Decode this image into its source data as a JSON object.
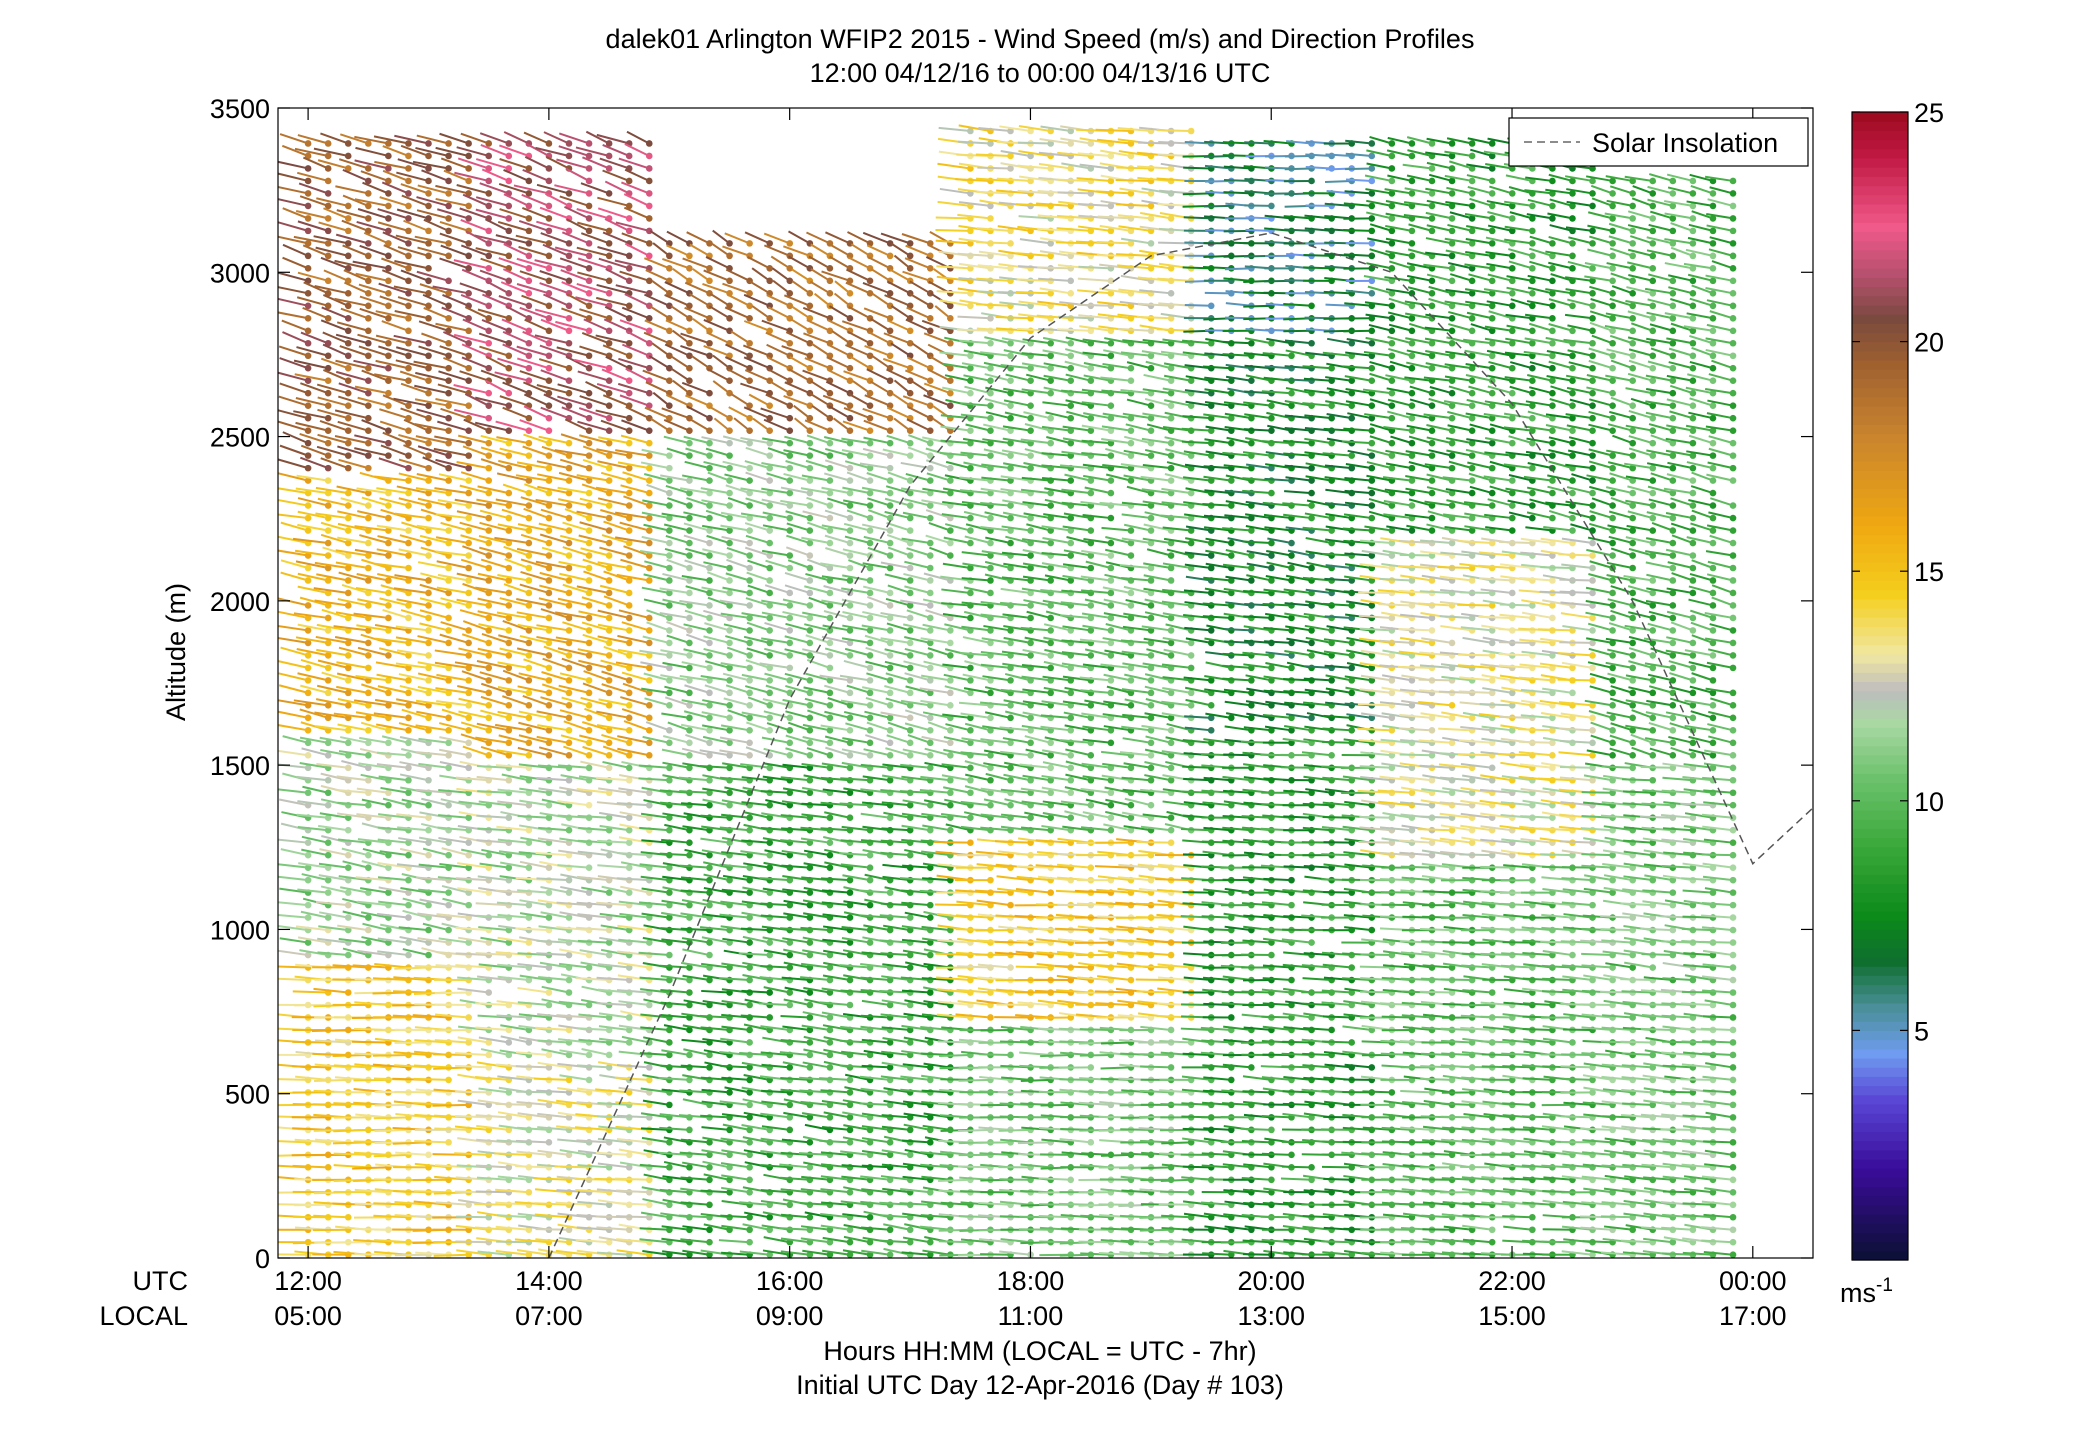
{
  "chart_data": {
    "type": "scatter",
    "subtype": "wind-barb-profile",
    "title": "dalek01 Arlington WFIP2 2015 - Wind Speed (m/s) and Direction Profiles",
    "subtitle": "12:00 04/12/16 to 00:00 04/13/16  UTC",
    "ylabel": "Altitude (m)",
    "xlabel": "Hours HH:MM  (LOCAL = UTC - 7hr)",
    "xlabel2": "Initial UTC Day 12-Apr-2016 (Day # 103)",
    "xlim_hours_utc": [
      11.75,
      24.5
    ],
    "ylim": [
      0,
      3500
    ],
    "yticks": [
      "0",
      "500",
      "1000",
      "1500",
      "2000",
      "2500",
      "3000",
      "3500"
    ],
    "ytick_values": [
      0,
      500,
      1000,
      1500,
      2000,
      2500,
      3000,
      3500
    ],
    "row_label_utc": "UTC",
    "row_label_local": "LOCAL",
    "xticks_utc": [
      "12:00",
      "14:00",
      "16:00",
      "18:00",
      "20:00",
      "22:00",
      "00:00"
    ],
    "xticks_local": [
      "05:00",
      "07:00",
      "09:00",
      "11:00",
      "13:00",
      "15:00",
      "17:00"
    ],
    "xtick_hours": [
      12,
      14,
      16,
      18,
      20,
      22,
      24
    ],
    "legend": {
      "entry": "Solar Insolation",
      "placement": "top-right",
      "style": "dashed gray line"
    },
    "solar_insolation_curve": {
      "hours": [
        14,
        15,
        16,
        17,
        18,
        19,
        20,
        21,
        22,
        23,
        24,
        24.5
      ],
      "altitude": [
        0,
        800,
        1700,
        2350,
        2800,
        3050,
        3120,
        3000,
        2600,
        2000,
        1200,
        1370
      ]
    },
    "colorbar": {
      "min": 0,
      "max": 25,
      "ticks": [
        "5",
        "10",
        "15",
        "20",
        "25"
      ],
      "tick_values": [
        5,
        10,
        15,
        20,
        25
      ],
      "unit_label": "ms",
      "unit_exponent": "-1",
      "color_stops": [
        {
          "v": 0,
          "c": "#0b1033"
        },
        {
          "v": 2,
          "c": "#3a0c9a"
        },
        {
          "v": 3.5,
          "c": "#5a47d6"
        },
        {
          "v": 4.5,
          "c": "#6f9cf0"
        },
        {
          "v": 5.5,
          "c": "#4a8f99"
        },
        {
          "v": 6.5,
          "c": "#0f6f2f"
        },
        {
          "v": 7.5,
          "c": "#0c8a1a"
        },
        {
          "v": 9,
          "c": "#3aa83a"
        },
        {
          "v": 10.5,
          "c": "#6cc26c"
        },
        {
          "v": 11.7,
          "c": "#a9d8a3"
        },
        {
          "v": 12.4,
          "c": "#bdbdbd"
        },
        {
          "v": 13.2,
          "c": "#f1e7a1"
        },
        {
          "v": 14.5,
          "c": "#f4cf1e"
        },
        {
          "v": 16,
          "c": "#f0a811"
        },
        {
          "v": 18,
          "c": "#c8832e"
        },
        {
          "v": 19.5,
          "c": "#a0612f"
        },
        {
          "v": 20.5,
          "c": "#7a4a3e"
        },
        {
          "v": 21.5,
          "c": "#b85070"
        },
        {
          "v": 22.5,
          "c": "#f05a8a"
        },
        {
          "v": 24,
          "c": "#c21a45"
        },
        {
          "v": 25,
          "c": "#9b0a1e"
        }
      ]
    },
    "profiles": {
      "time_step_hours": 0.1667,
      "start_hour": 12,
      "end_hour": 24,
      "altitude_step_m": 38,
      "speed_regions_ms": [
        {
          "t": [
            12.0,
            13.4
          ],
          "z": [
            0,
            900
          ],
          "speed": 14.5,
          "dir_deg": 265
        },
        {
          "t": [
            12.0,
            13.4
          ],
          "z": [
            900,
            1600
          ],
          "speed": 11.5,
          "dir_deg": 245
        },
        {
          "t": [
            12.0,
            13.4
          ],
          "z": [
            1600,
            2400
          ],
          "speed": 15.5,
          "dir_deg": 240
        },
        {
          "t": [
            12.0,
            13.4
          ],
          "z": [
            2400,
            3400
          ],
          "speed": 19.5,
          "dir_deg": 230
        },
        {
          "t": [
            13.4,
            15.0
          ],
          "z": [
            0,
            600
          ],
          "speed": 13.0,
          "dir_deg": 255
        },
        {
          "t": [
            13.4,
            15.0
          ],
          "z": [
            600,
            1500
          ],
          "speed": 12.0,
          "dir_deg": 250
        },
        {
          "t": [
            13.4,
            15.0
          ],
          "z": [
            1500,
            2500
          ],
          "speed": 16.0,
          "dir_deg": 235
        },
        {
          "t": [
            13.4,
            15.0
          ],
          "z": [
            2500,
            3400
          ],
          "speed": 21.0,
          "dir_deg": 225
        },
        {
          "t": [
            15.0,
            17.5
          ],
          "z": [
            0,
            1500
          ],
          "speed": 9.0,
          "dir_deg": 250
        },
        {
          "t": [
            15.0,
            17.5
          ],
          "z": [
            1500,
            2500
          ],
          "speed": 11.0,
          "dir_deg": 235
        },
        {
          "t": [
            15.0,
            17.5
          ],
          "z": [
            2500,
            3100
          ],
          "speed": 19.0,
          "dir_deg": 215
        },
        {
          "t": [
            17.5,
            19.5
          ],
          "z": [
            0,
            700
          ],
          "speed": 10.5,
          "dir_deg": 265
        },
        {
          "t": [
            17.5,
            19.5
          ],
          "z": [
            700,
            1300
          ],
          "speed": 14.5,
          "dir_deg": 260
        },
        {
          "t": [
            17.5,
            19.5
          ],
          "z": [
            1300,
            2800
          ],
          "speed": 10.0,
          "dir_deg": 245
        },
        {
          "t": [
            17.5,
            19.5
          ],
          "z": [
            2800,
            3450
          ],
          "speed": 13.5,
          "dir_deg": 255
        },
        {
          "t": [
            19.5,
            21.0
          ],
          "z": [
            0,
            1600
          ],
          "speed": 8.5,
          "dir_deg": 260
        },
        {
          "t": [
            19.5,
            21.0
          ],
          "z": [
            1600,
            2800
          ],
          "speed": 7.5,
          "dir_deg": 250
        },
        {
          "t": [
            19.5,
            21.0
          ],
          "z": [
            2800,
            3400
          ],
          "speed": 6.0,
          "dir_deg": 265
        },
        {
          "t": [
            21.0,
            22.7
          ],
          "z": [
            0,
            1200
          ],
          "speed": 10.0,
          "dir_deg": 260
        },
        {
          "t": [
            21.0,
            22.7
          ],
          "z": [
            1200,
            2200
          ],
          "speed": 13.0,
          "dir_deg": 255
        },
        {
          "t": [
            21.0,
            22.7
          ],
          "z": [
            2200,
            3400
          ],
          "speed": 8.5,
          "dir_deg": 240
        },
        {
          "t": [
            22.7,
            24.0
          ],
          "z": [
            0,
            1500
          ],
          "speed": 10.5,
          "dir_deg": 255
        },
        {
          "t": [
            22.7,
            24.0
          ],
          "z": [
            1500,
            3300
          ],
          "speed": 9.5,
          "dir_deg": 235
        }
      ]
    }
  }
}
